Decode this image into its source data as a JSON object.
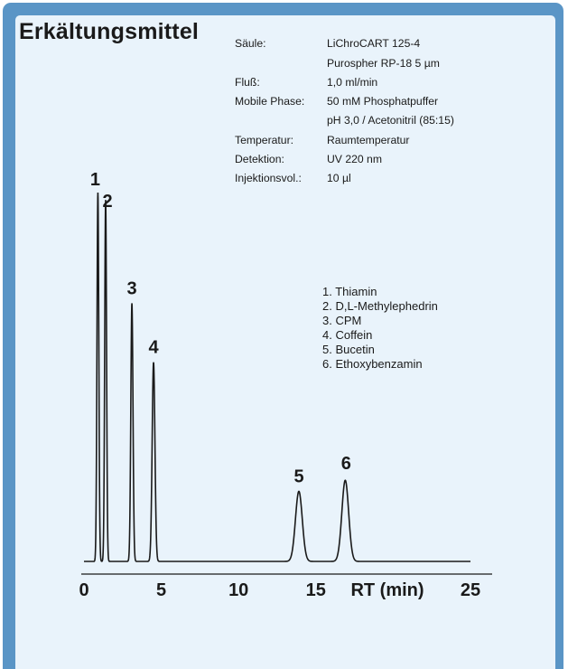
{
  "title": "Erkältungsmittel",
  "conditions": [
    {
      "label": "Säule:",
      "value": "LiChroCART 125-4"
    },
    {
      "label": "",
      "value": "Purospher RP-18 5 µm"
    },
    {
      "label": "Fluß:",
      "value": "1,0 ml/min"
    },
    {
      "label": "Mobile Phase:",
      "value": "50 mM Phosphatpuffer"
    },
    {
      "label": "",
      "value": "pH 3,0 / Acetonitril (85:15)"
    },
    {
      "label": "Temperatur:",
      "value": "Raumtemperatur"
    },
    {
      "label": "Detektion:",
      "value": "UV 220 nm"
    },
    {
      "label": "Injektionsvol.:",
      "value": "10 µl"
    }
  ],
  "compounds": [
    "1.  Thiamin",
    "2.  D,L-Methylephedrin",
    "3.  CPM",
    "4.  Coffein",
    "5.  Bucetin",
    "6.  Ethoxybenzamin"
  ],
  "colors": {
    "frame": "#5a95c6",
    "panel": "#e9f3fb",
    "trace": "#1a1a1a"
  },
  "chart_data": {
    "type": "line",
    "xlabel": "RT (min)",
    "xlim": [
      0,
      25
    ],
    "x_ticks": [
      "0",
      "5",
      "10",
      "15",
      "25"
    ],
    "y_axis_shown": false,
    "grid": false,
    "peaks": [
      {
        "label": "1",
        "rt": 0.9,
        "relative_height": 1.0,
        "width": 0.06
      },
      {
        "label": "2",
        "rt": 1.4,
        "relative_height": 0.98,
        "width": 0.06
      },
      {
        "label": "3",
        "rt": 3.1,
        "relative_height": 0.7,
        "width": 0.07
      },
      {
        "label": "4",
        "rt": 4.5,
        "relative_height": 0.54,
        "width": 0.09
      },
      {
        "label": "5",
        "rt": 13.9,
        "relative_height": 0.19,
        "width": 0.22
      },
      {
        "label": "6",
        "rt": 16.9,
        "relative_height": 0.22,
        "width": 0.22
      }
    ]
  }
}
